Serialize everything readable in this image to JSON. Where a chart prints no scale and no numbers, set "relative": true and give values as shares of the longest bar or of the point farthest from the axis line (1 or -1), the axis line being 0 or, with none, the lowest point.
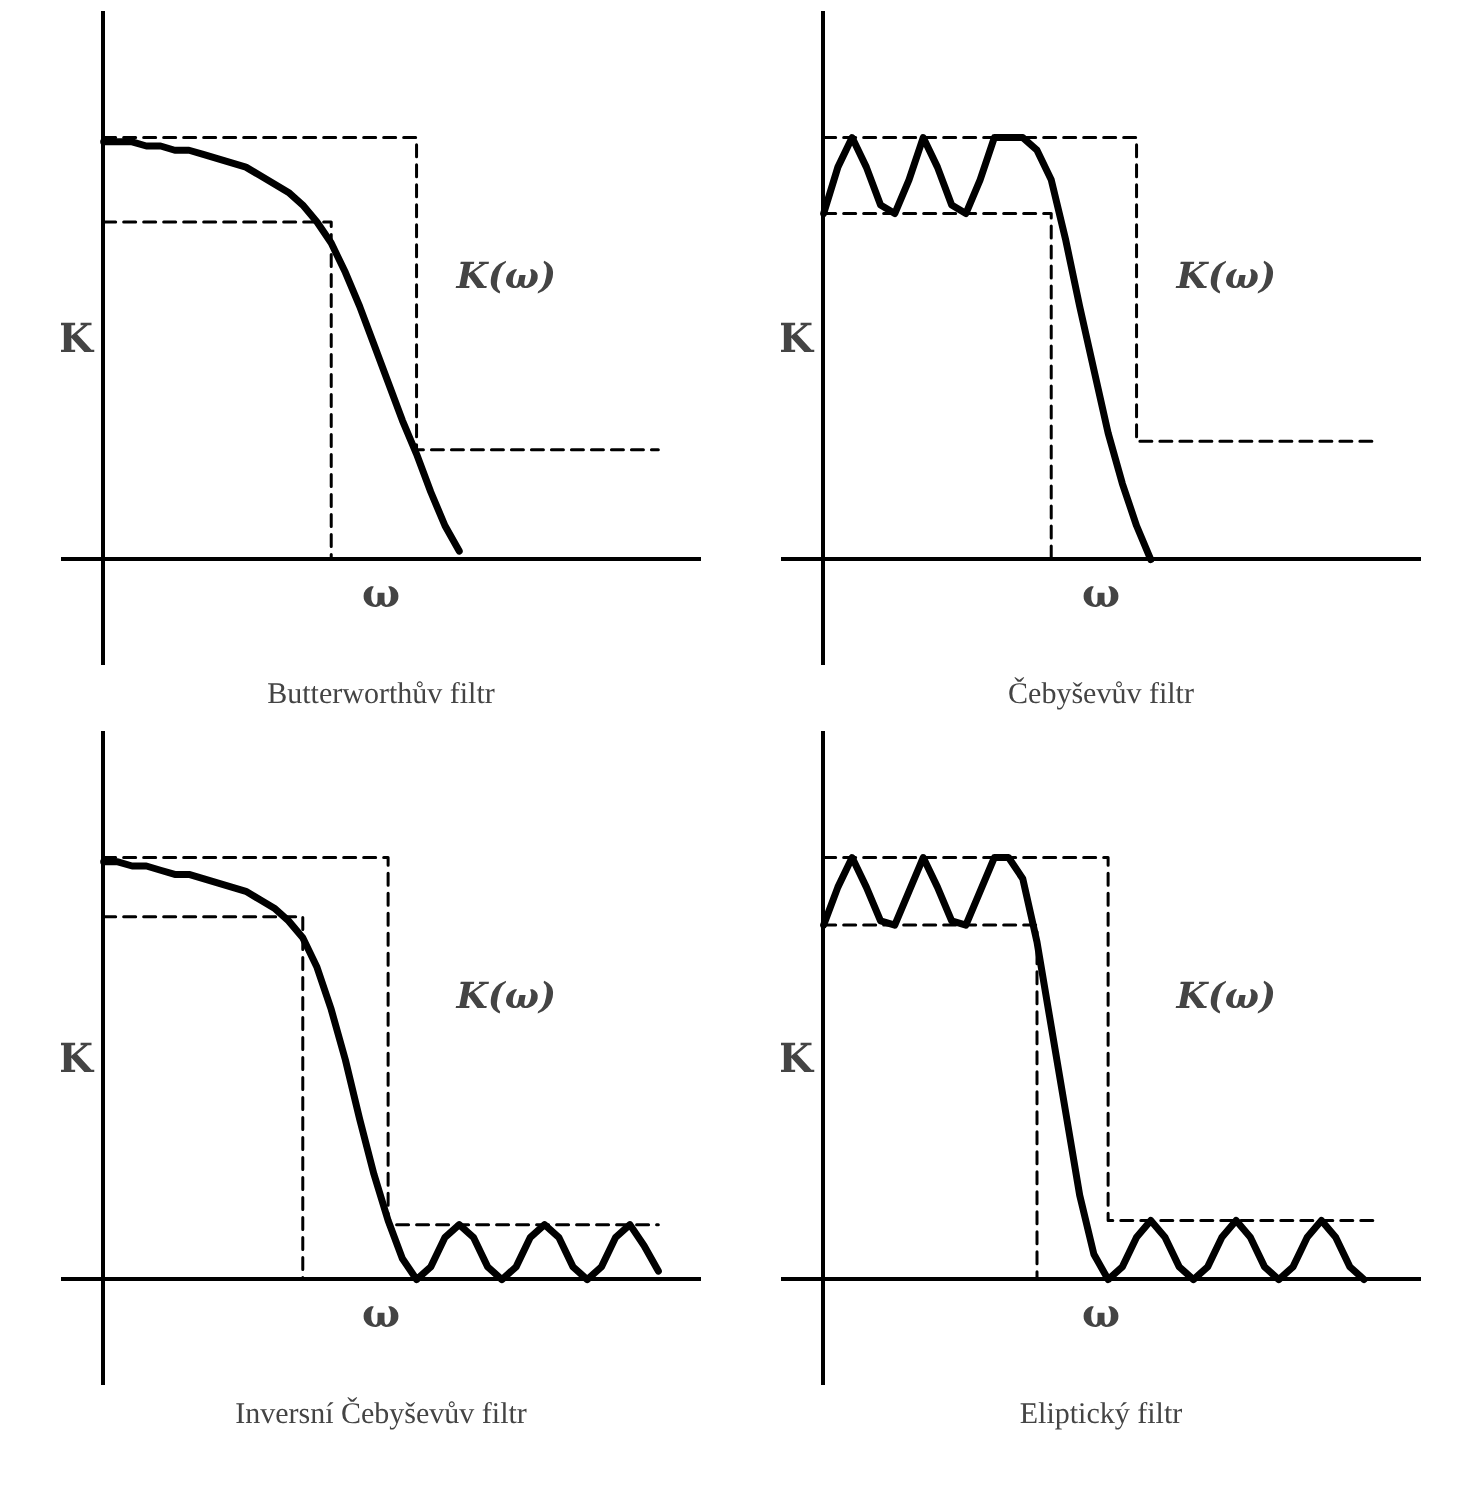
{
  "chart_data": [
    {
      "type": "line",
      "relative": true,
      "title": "Butterworthův filtr",
      "xlabel": "ω",
      "ylabel": "K",
      "annotations": [
        "K(ω)"
      ],
      "tick_labels": false,
      "categories": [
        null,
        null,
        null,
        null,
        null,
        null,
        null,
        null,
        null,
        null,
        null,
        null,
        null,
        null,
        null,
        null,
        null,
        null,
        null,
        null,
        null,
        null,
        null,
        null,
        null,
        null,
        null,
        null,
        null,
        null,
        null,
        null,
        null,
        null,
        null,
        null,
        null,
        null,
        null,
        null
      ],
      "series": [
        {
          "color": "#000000",
          "values": [
            0.99,
            0.99,
            0.99,
            0.98,
            0.98,
            0.97,
            0.97,
            0.96,
            0.95,
            0.94,
            0.93,
            0.91,
            0.89,
            0.87,
            0.84,
            0.8,
            0.75,
            0.68,
            0.6,
            0.51,
            0.42,
            0.33,
            0.25,
            0.16,
            0.08,
            0.02,
            null,
            null,
            null,
            null,
            null,
            null,
            null,
            null,
            null,
            null,
            null,
            null,
            null,
            null
          ]
        },
        {
          "type": "step",
          "line_style": "dashed",
          "color": "#000000",
          "values": [
            1,
            1,
            1,
            1,
            1,
            1,
            1,
            1,
            1,
            1,
            1,
            1,
            1,
            1,
            1,
            1,
            1,
            1,
            1,
            1,
            1,
            1,
            0.26,
            0.26,
            0.26,
            0.26,
            0.26,
            0.26,
            0.26,
            0.26,
            0.26,
            0.26,
            0.26,
            0.26,
            0.26,
            0.26,
            0.26,
            0.26,
            0.26,
            0.26
          ]
        },
        {
          "type": "step",
          "line_style": "dashed",
          "color": "#000000",
          "values": [
            0.8,
            0.8,
            0.8,
            0.8,
            0.8,
            0.8,
            0.8,
            0.8,
            0.8,
            0.8,
            0.8,
            0.8,
            0.8,
            0.8,
            0.8,
            0.8,
            0,
            null,
            null,
            null,
            null,
            null,
            null,
            null,
            null,
            null,
            null,
            null,
            null,
            null,
            null,
            null,
            null,
            null,
            null,
            null,
            null,
            null,
            null,
            null
          ]
        }
      ]
    },
    {
      "type": "line",
      "relative": true,
      "title": "Čebyševův filtr",
      "xlabel": "ω",
      "ylabel": "K",
      "annotations": [
        "K(ω)"
      ],
      "tick_labels": false,
      "categories": [
        null,
        null,
        null,
        null,
        null,
        null,
        null,
        null,
        null,
        null,
        null,
        null,
        null,
        null,
        null,
        null,
        null,
        null,
        null,
        null,
        null,
        null,
        null,
        null,
        null,
        null,
        null,
        null,
        null,
        null,
        null,
        null,
        null,
        null,
        null,
        null,
        null,
        null,
        null,
        null
      ],
      "series": [
        {
          "color": "#000000",
          "values": [
            0.82,
            0.93,
            1,
            0.93,
            0.84,
            0.82,
            0.9,
            1,
            0.93,
            0.84,
            0.82,
            0.9,
            1,
            1,
            1,
            0.97,
            0.9,
            0.76,
            0.6,
            0.45,
            0.3,
            0.18,
            0.08,
            0,
            null,
            null,
            null,
            null,
            null,
            null,
            null,
            null,
            null,
            null,
            null,
            null,
            null,
            null,
            null,
            null
          ]
        },
        {
          "type": "step",
          "line_style": "dashed",
          "color": "#000000",
          "values": [
            1,
            1,
            1,
            1,
            1,
            1,
            1,
            1,
            1,
            1,
            1,
            1,
            1,
            1,
            1,
            1,
            1,
            1,
            1,
            1,
            1,
            1,
            0.28,
            0.28,
            0.28,
            0.28,
            0.28,
            0.28,
            0.28,
            0.28,
            0.28,
            0.28,
            0.28,
            0.28,
            0.28,
            0.28,
            0.28,
            0.28,
            0.28,
            0.28
          ]
        },
        {
          "type": "step",
          "line_style": "dashed",
          "color": "#000000",
          "values": [
            0.82,
            0.82,
            0.82,
            0.82,
            0.82,
            0.82,
            0.82,
            0.82,
            0.82,
            0.82,
            0.82,
            0.82,
            0.82,
            0.82,
            0.82,
            0.82,
            0,
            null,
            null,
            null,
            null,
            null,
            null,
            null,
            null,
            null,
            null,
            null,
            null,
            null,
            null,
            null,
            null,
            null,
            null,
            null,
            null,
            null,
            null,
            null
          ]
        }
      ]
    },
    {
      "type": "line",
      "relative": true,
      "title": "Inversní Čebyševův filtr",
      "xlabel": "ω",
      "ylabel": "K",
      "annotations": [
        "K(ω)"
      ],
      "tick_labels": false,
      "categories": [
        null,
        null,
        null,
        null,
        null,
        null,
        null,
        null,
        null,
        null,
        null,
        null,
        null,
        null,
        null,
        null,
        null,
        null,
        null,
        null,
        null,
        null,
        null,
        null,
        null,
        null,
        null,
        null,
        null,
        null,
        null,
        null,
        null,
        null,
        null,
        null,
        null,
        null,
        null,
        null
      ],
      "series": [
        {
          "color": "#000000",
          "values": [
            0.99,
            0.99,
            0.98,
            0.98,
            0.97,
            0.96,
            0.96,
            0.95,
            0.94,
            0.93,
            0.92,
            0.9,
            0.88,
            0.85,
            0.81,
            0.74,
            0.64,
            0.52,
            0.38,
            0.25,
            0.14,
            0.05,
            0,
            0.03,
            0.1,
            0.13,
            0.1,
            0.03,
            0,
            0.03,
            0.1,
            0.13,
            0.1,
            0.03,
            0,
            0.03,
            0.1,
            0.13,
            0.08,
            0.02
          ]
        },
        {
          "type": "step",
          "line_style": "dashed",
          "color": "#000000",
          "values": [
            1,
            1,
            1,
            1,
            1,
            1,
            1,
            1,
            1,
            1,
            1,
            1,
            1,
            1,
            1,
            1,
            1,
            1,
            1,
            1,
            0.13,
            0.13,
            0.13,
            0.13,
            0.13,
            0.13,
            0.13,
            0.13,
            0.13,
            0.13,
            0.13,
            0.13,
            0.13,
            0.13,
            0.13,
            0.13,
            0.13,
            0.13,
            0.13,
            0.13
          ]
        },
        {
          "type": "step",
          "line_style": "dashed",
          "color": "#000000",
          "values": [
            0.86,
            0.86,
            0.86,
            0.86,
            0.86,
            0.86,
            0.86,
            0.86,
            0.86,
            0.86,
            0.86,
            0.86,
            0.86,
            0.86,
            0,
            null,
            null,
            null,
            null,
            null,
            null,
            null,
            null,
            null,
            null,
            null,
            null,
            null,
            null,
            null,
            null,
            null,
            null,
            null,
            null,
            null,
            null,
            null,
            null,
            null
          ]
        }
      ]
    },
    {
      "type": "line",
      "relative": true,
      "title": "Eliptický filtr",
      "xlabel": "ω",
      "ylabel": "K",
      "annotations": [
        "K(ω)"
      ],
      "tick_labels": false,
      "categories": [
        null,
        null,
        null,
        null,
        null,
        null,
        null,
        null,
        null,
        null,
        null,
        null,
        null,
        null,
        null,
        null,
        null,
        null,
        null,
        null,
        null,
        null,
        null,
        null,
        null,
        null,
        null,
        null,
        null,
        null,
        null,
        null,
        null,
        null,
        null,
        null,
        null,
        null,
        null,
        null
      ],
      "series": [
        {
          "color": "#000000",
          "values": [
            0.84,
            0.93,
            1,
            0.93,
            0.85,
            0.84,
            0.92,
            1,
            0.93,
            0.85,
            0.84,
            0.92,
            1,
            1,
            0.95,
            0.8,
            0.6,
            0.4,
            0.2,
            0.06,
            0,
            0.03,
            0.1,
            0.14,
            0.1,
            0.03,
            0,
            0.03,
            0.1,
            0.14,
            0.1,
            0.03,
            0,
            0.03,
            0.1,
            0.14,
            0.1,
            0.03,
            0,
            null
          ]
        },
        {
          "type": "step",
          "line_style": "dashed",
          "color": "#000000",
          "values": [
            1,
            1,
            1,
            1,
            1,
            1,
            1,
            1,
            1,
            1,
            1,
            1,
            1,
            1,
            1,
            1,
            1,
            1,
            1,
            1,
            0.14,
            0.14,
            0.14,
            0.14,
            0.14,
            0.14,
            0.14,
            0.14,
            0.14,
            0.14,
            0.14,
            0.14,
            0.14,
            0.14,
            0.14,
            0.14,
            0.14,
            0.14,
            0.14,
            0.14
          ]
        },
        {
          "type": "step",
          "line_style": "dashed",
          "color": "#000000",
          "values": [
            0.84,
            0.84,
            0.84,
            0.84,
            0.84,
            0.84,
            0.84,
            0.84,
            0.84,
            0.84,
            0.84,
            0.84,
            0.84,
            0.84,
            0.84,
            0,
            null,
            null,
            null,
            null,
            null,
            null,
            null,
            null,
            null,
            null,
            null,
            null,
            null,
            null,
            null,
            null,
            null,
            null,
            null,
            null,
            null,
            null,
            null,
            null
          ]
        }
      ]
    }
  ]
}
